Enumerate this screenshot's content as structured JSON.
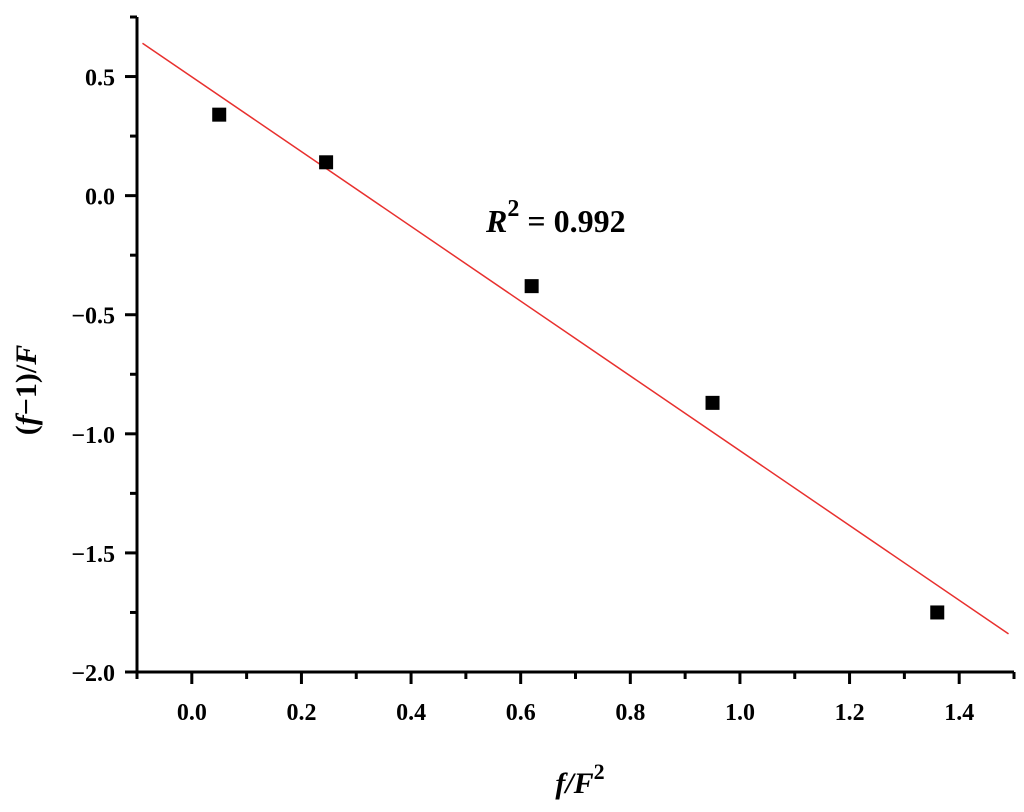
{
  "chart_data": {
    "type": "scatter",
    "xlim": [
      -0.1,
      1.5
    ],
    "ylim": [
      -2.0,
      0.75
    ],
    "x_ticks": [
      0.0,
      0.2,
      0.4,
      0.6,
      0.8,
      1.0,
      1.2,
      1.4
    ],
    "x_tick_labels": [
      "0.0",
      "0.2",
      "0.4",
      "0.6",
      "0.8",
      "1.0",
      "1.2",
      "1.4"
    ],
    "y_ticks": [
      0.5,
      0.0,
      -0.5,
      -1.0,
      -1.5,
      -2.0
    ],
    "y_tick_labels": [
      "0.5",
      "0.0",
      "−0.5",
      "−1.0",
      "−1.5",
      "−2.0"
    ],
    "xlabel": {
      "main": "f/F",
      "sup": "2"
    },
    "ylabel": {
      "open": "(",
      "f": "f",
      "rest": "−1)/",
      "F": "F"
    },
    "points": [
      {
        "x": 0.05,
        "y": 0.34
      },
      {
        "x": 0.245,
        "y": 0.14
      },
      {
        "x": 0.62,
        "y": -0.38
      },
      {
        "x": 0.95,
        "y": -0.87
      },
      {
        "x": 1.36,
        "y": -1.75
      }
    ],
    "fit_line": {
      "x": [
        -0.09,
        1.49
      ],
      "y": [
        0.64,
        -1.84
      ],
      "color": "#e8302e"
    },
    "marker_color": "#000000",
    "annotation": {
      "R": "R",
      "sup": "2",
      "text": " = 0.992"
    },
    "grid": false
  }
}
